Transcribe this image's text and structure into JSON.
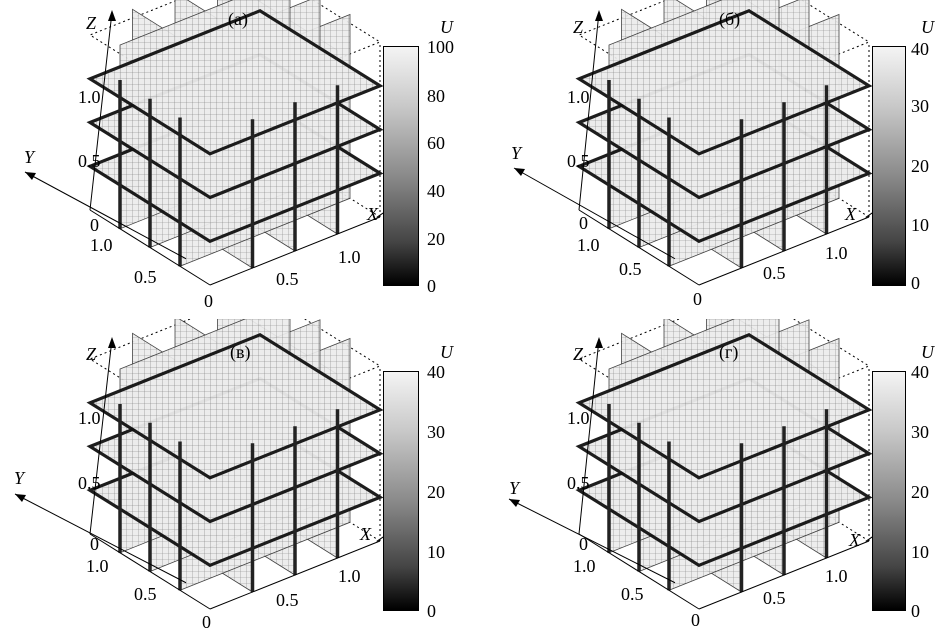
{
  "figure": {
    "panels": [
      {
        "id": "a",
        "label": "(а)",
        "axis_z": "Z",
        "axis_y": "Y",
        "axis_x": "X",
        "z_ticks": [
          "1.0",
          "0.5",
          "0"
        ],
        "y_ticks": [
          "1.0",
          "0.5",
          "0"
        ],
        "x_ticks": [
          "0.5",
          "1.0"
        ],
        "colorbar_title": "U",
        "colorbar_ticks": [
          "100",
          "80",
          "60",
          "40",
          "20",
          "0"
        ],
        "colorbar_max": 100
      },
      {
        "id": "b",
        "label": "(б)",
        "axis_z": "Z",
        "axis_y": "Y",
        "axis_x": "X",
        "z_ticks": [
          "1.0",
          "0.5",
          "0"
        ],
        "y_ticks": [
          "1.0",
          "0.5",
          "0"
        ],
        "x_ticks": [
          "0.5",
          "1.0"
        ],
        "colorbar_title": "U",
        "colorbar_ticks": [
          "40",
          "30",
          "20",
          "10",
          "0"
        ],
        "colorbar_max": 40
      },
      {
        "id": "c",
        "label": "(в)",
        "axis_z": "Z",
        "axis_y": "Y",
        "axis_x": "X",
        "z_ticks": [
          "1.0",
          "0.5",
          "0"
        ],
        "y_ticks": [
          "1.0",
          "0.5",
          "0"
        ],
        "x_ticks": [
          "0.5",
          "1.0"
        ],
        "colorbar_title": "U",
        "colorbar_ticks": [
          "40",
          "30",
          "20",
          "10",
          "0"
        ],
        "colorbar_max": 40
      },
      {
        "id": "d",
        "label": "(г)",
        "axis_z": "Z",
        "axis_y": "Y",
        "axis_x": "X",
        "z_ticks": [
          "1.0",
          "0.5",
          "0"
        ],
        "y_ticks": [
          "1.0",
          "0.5",
          "0"
        ],
        "x_ticks": [
          "0.5",
          "1.0"
        ],
        "colorbar_title": "U",
        "colorbar_ticks": [
          "40",
          "30",
          "20",
          "10",
          "0"
        ],
        "colorbar_max": 40
      }
    ]
  }
}
